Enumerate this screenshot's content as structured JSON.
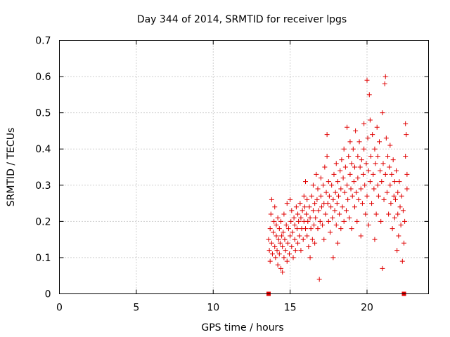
{
  "chart_data": {
    "type": "scatter",
    "title": "Day 344 of 2014, SRMTID for receiver lpgs",
    "xlabel": "GPS time / hours",
    "ylabel": "SRMTID / TECUs",
    "xlim": [
      0,
      24
    ],
    "ylim": [
      0,
      0.7
    ],
    "x_ticks": [
      0,
      5,
      10,
      15,
      20
    ],
    "x_tick_labels": [
      "0",
      "5",
      "10",
      "15",
      "20"
    ],
    "y_ticks": [
      0,
      0.1,
      0.2,
      0.3,
      0.4,
      0.5,
      0.6,
      0.7
    ],
    "y_tick_labels": [
      "0",
      "0.1",
      "0.2",
      "0.3",
      "0.4",
      "0.5",
      "0.6",
      "0.7"
    ],
    "grid": true,
    "marker": "+",
    "color": "#e00000",
    "zero_points": [
      [
        13.6,
        0
      ],
      [
        22.4,
        0
      ]
    ],
    "series": [
      {
        "name": "SRMTID",
        "points": [
          [
            13.6,
            0.15
          ],
          [
            13.65,
            0.12
          ],
          [
            13.7,
            0.18
          ],
          [
            13.7,
            0.09
          ],
          [
            13.75,
            0.22
          ],
          [
            13.8,
            0.14
          ],
          [
            13.8,
            0.26
          ],
          [
            13.85,
            0.11
          ],
          [
            13.9,
            0.17
          ],
          [
            13.95,
            0.2
          ],
          [
            14.0,
            0.13
          ],
          [
            14.0,
            0.24
          ],
          [
            14.05,
            0.1
          ],
          [
            14.1,
            0.16
          ],
          [
            14.1,
            0.19
          ],
          [
            14.15,
            0.12
          ],
          [
            14.2,
            0.21
          ],
          [
            14.2,
            0.08
          ],
          [
            14.25,
            0.15
          ],
          [
            14.3,
            0.18
          ],
          [
            14.3,
            0.11
          ],
          [
            14.35,
            0.14
          ],
          [
            14.4,
            0.07
          ],
          [
            14.4,
            0.2
          ],
          [
            14.45,
            0.16
          ],
          [
            14.5,
            0.06
          ],
          [
            14.5,
            0.13
          ],
          [
            14.55,
            0.17
          ],
          [
            14.6,
            0.1
          ],
          [
            14.6,
            0.22
          ],
          [
            14.65,
            0.15
          ],
          [
            14.7,
            0.12
          ],
          [
            14.75,
            0.19
          ],
          [
            14.8,
            0.09
          ],
          [
            14.8,
            0.25
          ],
          [
            14.85,
            0.14
          ],
          [
            14.9,
            0.18
          ],
          [
            14.95,
            0.11
          ],
          [
            15.0,
            0.26
          ],
          [
            15.0,
            0.16
          ],
          [
            15.05,
            0.2
          ],
          [
            15.1,
            0.13
          ],
          [
            15.1,
            0.23
          ],
          [
            15.15,
            0.17
          ],
          [
            15.2,
            0.1
          ],
          [
            15.25,
            0.21
          ],
          [
            15.3,
            0.15
          ],
          [
            15.3,
            0.19
          ],
          [
            15.35,
            0.12
          ],
          [
            15.4,
            0.24
          ],
          [
            15.45,
            0.18
          ],
          [
            15.5,
            0.14
          ],
          [
            15.5,
            0.22
          ],
          [
            15.55,
            0.2
          ],
          [
            15.6,
            0.16
          ],
          [
            15.65,
            0.25
          ],
          [
            15.7,
            0.12
          ],
          [
            15.7,
            0.21
          ],
          [
            15.75,
            0.18
          ],
          [
            15.8,
            0.23
          ],
          [
            15.85,
            0.15
          ],
          [
            15.9,
            0.27
          ],
          [
            15.9,
            0.2
          ],
          [
            15.95,
            0.24
          ],
          [
            16.0,
            0.18
          ],
          [
            16.0,
            0.31
          ],
          [
            16.05,
            0.22
          ],
          [
            16.1,
            0.16
          ],
          [
            16.1,
            0.26
          ],
          [
            16.15,
            0.2
          ],
          [
            16.2,
            0.13
          ],
          [
            16.25,
            0.24
          ],
          [
            16.3,
            0.21
          ],
          [
            16.3,
            0.1
          ],
          [
            16.35,
            0.18
          ],
          [
            16.4,
            0.27
          ],
          [
            16.45,
            0.15
          ],
          [
            16.5,
            0.23
          ],
          [
            16.5,
            0.3
          ],
          [
            16.55,
            0.19
          ],
          [
            16.6,
            0.25
          ],
          [
            16.6,
            0.14
          ],
          [
            16.65,
            0.21
          ],
          [
            16.7,
            0.33
          ],
          [
            16.75,
            0.26
          ],
          [
            16.8,
            0.18
          ],
          [
            16.8,
            0.29
          ],
          [
            16.85,
            0.23
          ],
          [
            16.9,
            0.04
          ],
          [
            16.95,
            0.2
          ],
          [
            17.0,
            0.27
          ],
          [
            17.0,
            0.32
          ],
          [
            17.05,
            0.24
          ],
          [
            17.1,
            0.19
          ],
          [
            17.15,
            0.3
          ],
          [
            17.2,
            0.25
          ],
          [
            17.2,
            0.15
          ],
          [
            17.25,
            0.35
          ],
          [
            17.3,
            0.22
          ],
          [
            17.35,
            0.28
          ],
          [
            17.4,
            0.44
          ],
          [
            17.4,
            0.38
          ],
          [
            17.45,
            0.25
          ],
          [
            17.5,
            0.2
          ],
          [
            17.5,
            0.31
          ],
          [
            17.55,
            0.27
          ],
          [
            17.6,
            0.17
          ],
          [
            17.65,
            0.24
          ],
          [
            17.7,
            0.3
          ],
          [
            17.75,
            0.21
          ],
          [
            17.8,
            0.26
          ],
          [
            17.8,
            0.1
          ],
          [
            17.85,
            0.33
          ],
          [
            17.9,
            0.23
          ],
          [
            17.95,
            0.28
          ],
          [
            18.0,
            0.19
          ],
          [
            18.0,
            0.36
          ],
          [
            18.05,
            0.25
          ],
          [
            18.1,
            0.31
          ],
          [
            18.1,
            0.14
          ],
          [
            18.15,
            0.27
          ],
          [
            18.2,
            0.22
          ],
          [
            18.25,
            0.34
          ],
          [
            18.3,
            0.18
          ],
          [
            18.3,
            0.29
          ],
          [
            18.35,
            0.37
          ],
          [
            18.4,
            0.24
          ],
          [
            18.45,
            0.32
          ],
          [
            18.5,
            0.2
          ],
          [
            18.5,
            0.4
          ],
          [
            18.55,
            0.28
          ],
          [
            18.6,
            0.35
          ],
          [
            18.65,
            0.23
          ],
          [
            18.7,
            0.46
          ],
          [
            18.7,
            0.3
          ],
          [
            18.75,
            0.26
          ],
          [
            18.8,
            0.38
          ],
          [
            18.85,
            0.21
          ],
          [
            18.9,
            0.33
          ],
          [
            18.9,
            0.42
          ],
          [
            18.95,
            0.29
          ],
          [
            19.0,
            0.36
          ],
          [
            19.0,
            0.18
          ],
          [
            19.05,
            0.27
          ],
          [
            19.1,
            0.4
          ],
          [
            19.15,
            0.31
          ],
          [
            19.2,
            0.24
          ],
          [
            19.2,
            0.35
          ],
          [
            19.25,
            0.45
          ],
          [
            19.3,
            0.28
          ],
          [
            19.35,
            0.2
          ],
          [
            19.4,
            0.38
          ],
          [
            19.4,
            0.32
          ],
          [
            19.45,
            0.26
          ],
          [
            19.5,
            0.42
          ],
          [
            19.55,
            0.35
          ],
          [
            19.6,
            0.29
          ],
          [
            19.6,
            0.16
          ],
          [
            19.65,
            0.37
          ],
          [
            19.7,
            0.25
          ],
          [
            19.75,
            0.33
          ],
          [
            19.8,
            0.47
          ],
          [
            19.8,
            0.4
          ],
          [
            19.85,
            0.3
          ],
          [
            19.9,
            0.22
          ],
          [
            19.95,
            0.36
          ],
          [
            20.0,
            0.59
          ],
          [
            20.0,
            0.27
          ],
          [
            20.05,
            0.43
          ],
          [
            20.1,
            0.34
          ],
          [
            20.1,
            0.19
          ],
          [
            20.15,
            0.55
          ],
          [
            20.2,
            0.31
          ],
          [
            20.2,
            0.48
          ],
          [
            20.25,
            0.38
          ],
          [
            20.3,
            0.25
          ],
          [
            20.35,
            0.44
          ],
          [
            20.4,
            0.33
          ],
          [
            20.45,
            0.29
          ],
          [
            20.5,
            0.4
          ],
          [
            20.5,
            0.15
          ],
          [
            20.55,
            0.36
          ],
          [
            20.6,
            0.22
          ],
          [
            20.65,
            0.46
          ],
          [
            20.7,
            0.3
          ],
          [
            20.7,
            0.38
          ],
          [
            20.75,
            0.27
          ],
          [
            20.8,
            0.42
          ],
          [
            20.85,
            0.34
          ],
          [
            20.9,
            0.2
          ],
          [
            20.95,
            0.31
          ],
          [
            21.0,
            0.07
          ],
          [
            21.0,
            0.5
          ],
          [
            21.05,
            0.36
          ],
          [
            21.1,
            0.26
          ],
          [
            21.15,
            0.58
          ],
          [
            21.2,
            0.6
          ],
          [
            21.2,
            0.33
          ],
          [
            21.25,
            0.43
          ],
          [
            21.3,
            0.28
          ],
          [
            21.35,
            0.38
          ],
          [
            21.4,
            0.22
          ],
          [
            21.45,
            0.35
          ],
          [
            21.5,
            0.3
          ],
          [
            21.5,
            0.41
          ],
          [
            21.55,
            0.25
          ],
          [
            21.6,
            0.33
          ],
          [
            21.65,
            0.18
          ],
          [
            21.7,
            0.37
          ],
          [
            21.75,
            0.27
          ],
          [
            21.8,
            0.31
          ],
          [
            21.8,
            0.21
          ],
          [
            21.85,
            0.26
          ],
          [
            21.9,
            0.34
          ],
          [
            21.95,
            0.12
          ],
          [
            22.0,
            0.28
          ],
          [
            22.0,
            0.22
          ],
          [
            22.05,
            0.16
          ],
          [
            22.1,
            0.31
          ],
          [
            22.15,
            0.24
          ],
          [
            22.2,
            0.19
          ],
          [
            22.25,
            0.27
          ],
          [
            22.3,
            0.09
          ],
          [
            22.35,
            0.23
          ],
          [
            22.4,
            0.14
          ],
          [
            22.45,
            0.2
          ],
          [
            22.5,
            0.47
          ],
          [
            22.5,
            0.38
          ],
          [
            22.55,
            0.44
          ],
          [
            22.6,
            0.33
          ],
          [
            22.6,
            0.29
          ]
        ]
      }
    ]
  }
}
